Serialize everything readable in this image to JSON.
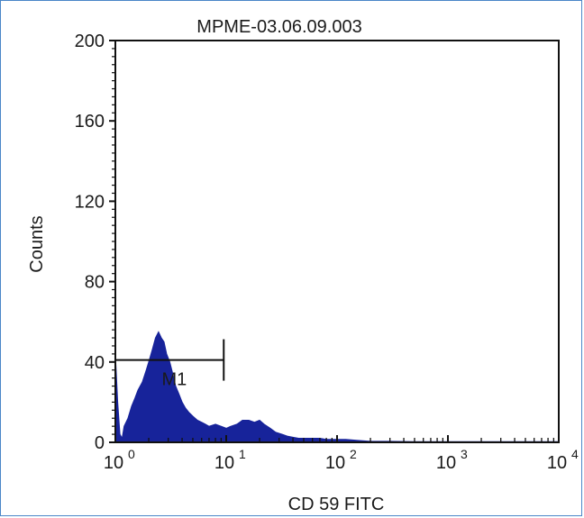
{
  "chart_data": {
    "type": "area",
    "title": "MPME-03.06.09.003",
    "xlabel": "CD 59 FITC",
    "ylabel": "Counts",
    "x_scale": "log",
    "xlim": [
      1,
      10000
    ],
    "ylim": [
      0,
      200
    ],
    "x_ticks": [
      {
        "base": "10",
        "exp": "0"
      },
      {
        "base": "10",
        "exp": "1"
      },
      {
        "base": "10",
        "exp": "2"
      },
      {
        "base": "10",
        "exp": "3"
      },
      {
        "base": "10",
        "exp": "4"
      }
    ],
    "y_ticks": [
      "0",
      "40",
      "80",
      "120",
      "160",
      "200"
    ],
    "fill_color": "#17239a",
    "series": [
      {
        "x": [
          1.0,
          1.05,
          1.1,
          1.15,
          1.2,
          1.3,
          1.4,
          1.5,
          1.6,
          1.75,
          1.9,
          2.0,
          2.15,
          2.3,
          2.45,
          2.6,
          2.75,
          2.9,
          3.1,
          3.3,
          3.5,
          3.75,
          4.0,
          4.3,
          4.6,
          5.0,
          5.5,
          6.0,
          6.5,
          7.0,
          8.0,
          9.0,
          10.0,
          11.0,
          12.5,
          14.0,
          16.0,
          18.0,
          20.0,
          22.0,
          25.0,
          28.0,
          32.0,
          36.0,
          40.0,
          45.0,
          50.0,
          60.0,
          70.0,
          80.0,
          100.0,
          120.0,
          150.0,
          200.0,
          300.0,
          500.0,
          1000.0,
          10000.0
        ],
        "y": [
          44,
          20,
          4,
          2,
          8,
          12,
          18,
          22,
          26,
          30,
          36,
          40,
          46,
          52,
          55,
          52,
          50,
          44,
          40,
          34,
          28,
          24,
          20,
          17,
          15,
          13,
          11,
          10,
          9,
          8,
          9,
          8,
          7,
          8,
          9,
          11,
          11,
          10,
          11,
          9,
          7,
          5,
          4,
          3,
          2.5,
          2,
          2,
          2,
          2,
          1.5,
          1.5,
          1.5,
          1,
          0.5,
          0.5,
          0.3,
          0.3,
          0.3
        ]
      }
    ],
    "gates": [
      {
        "label": "M1",
        "x_start": 1.0,
        "x_end": 9.5,
        "y": 41
      }
    ]
  }
}
